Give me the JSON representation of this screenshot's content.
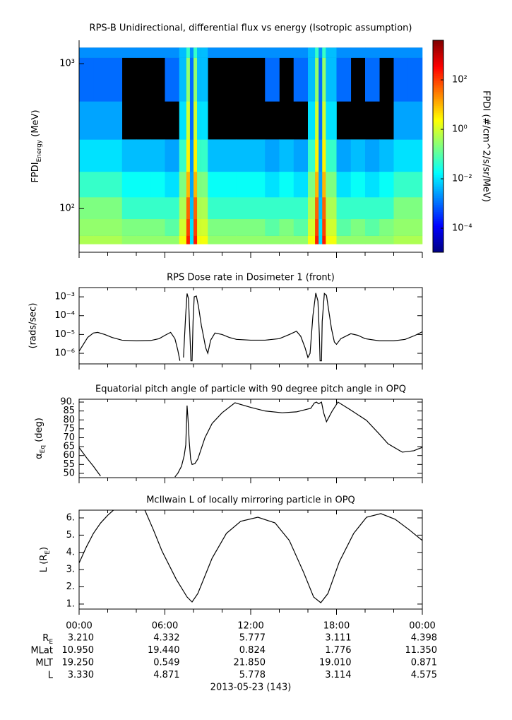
{
  "chart_data": [
    {
      "type": "heatmap",
      "title": "RPS-B  Unidirectional, differential flux vs energy (Isotropic assumption)",
      "ylabel": {
        "main": "FPDI",
        "sub": "Energy",
        "rest": " (MeV)"
      },
      "log": true,
      "ylim": [
        50,
        1450
      ],
      "yticks": [
        {
          "value": 100,
          "label": "10²"
        },
        {
          "value": 1000,
          "label": "10³"
        }
      ],
      "x_bins": [
        0,
        1,
        2,
        3,
        4,
        5,
        6,
        7,
        7.5,
        7.75,
        8,
        8.25,
        8.5,
        9,
        10,
        11,
        12,
        13,
        14,
        15,
        16,
        16.5,
        16.75,
        17,
        17.25,
        17.5,
        18,
        19,
        20,
        21,
        22,
        23,
        24
      ],
      "y_bins": [
        57,
        65,
        85,
        120,
        180,
        300,
        550,
        1100,
        1290
      ],
      "z": [
        [
          0.5,
          0.3,
          0.2,
          0.05,
          0.01,
          0.003,
          0.001,
          0.002
        ],
        [
          0.5,
          0.3,
          0.2,
          0.05,
          0.01,
          0.003,
          0.001,
          0.002
        ],
        [
          0.5,
          0.3,
          0.2,
          0.05,
          0.01,
          0.003,
          0.001,
          0.002
        ],
        [
          0.3,
          0.2,
          0.05,
          0.02,
          0.005,
          null,
          null,
          0.002
        ],
        [
          0.3,
          0.2,
          0.05,
          0.02,
          0.005,
          null,
          null,
          0.002
        ],
        [
          0.3,
          0.2,
          0.05,
          0.02,
          0.005,
          null,
          null,
          0.002
        ],
        [
          0.3,
          0.1,
          0.05,
          0.01,
          0.003,
          null,
          0.001,
          0.002
        ],
        [
          2,
          1,
          0.5,
          0.2,
          0.05,
          0.01,
          0.005,
          0.005
        ],
        [
          200,
          100,
          50,
          10,
          3,
          1,
          0.3,
          0.05
        ],
        [
          0.01,
          0.01,
          0.005,
          0.003,
          0.002,
          0.001,
          0.001,
          0.002
        ],
        [
          200,
          100,
          50,
          10,
          3,
          1,
          0.3,
          0.05
        ],
        [
          2,
          1,
          0.5,
          0.2,
          0.05,
          0.01,
          0.005,
          0.005
        ],
        [
          2,
          1,
          0.5,
          0.2,
          0.05,
          0.01,
          0.005,
          0.005
        ],
        [
          0.3,
          0.2,
          0.05,
          0.02,
          0.005,
          null,
          null,
          0.002
        ],
        [
          0.3,
          0.2,
          0.05,
          0.02,
          0.005,
          null,
          null,
          0.002
        ],
        [
          0.3,
          0.2,
          0.05,
          0.02,
          0.005,
          null,
          null,
          0.002
        ],
        [
          0.3,
          0.2,
          0.05,
          0.02,
          0.005,
          null,
          null,
          0.002
        ],
        [
          0.3,
          0.1,
          0.05,
          0.01,
          0.003,
          null,
          0.001,
          0.002
        ],
        [
          0.3,
          0.2,
          0.05,
          0.02,
          0.005,
          null,
          null,
          0.002
        ],
        [
          0.3,
          0.1,
          0.05,
          0.01,
          0.003,
          null,
          0.001,
          0.002
        ],
        [
          2,
          1,
          0.5,
          0.2,
          0.05,
          0.01,
          0.005,
          0.005
        ],
        [
          200,
          100,
          50,
          10,
          3,
          1,
          0.3,
          0.05
        ],
        [
          0.01,
          0.01,
          0.005,
          0.003,
          0.002,
          0.001,
          0.001,
          0.002
        ],
        [
          200,
          100,
          50,
          10,
          3,
          1,
          0.3,
          0.05
        ],
        [
          2,
          1,
          0.5,
          0.2,
          0.05,
          0.01,
          0.005,
          0.005
        ],
        [
          2,
          1,
          0.5,
          0.2,
          0.05,
          0.01,
          0.005,
          0.005
        ],
        [
          0.3,
          0.1,
          0.05,
          0.01,
          0.003,
          null,
          0.001,
          0.002
        ],
        [
          0.3,
          0.2,
          0.05,
          0.02,
          0.005,
          null,
          null,
          0.002
        ],
        [
          0.3,
          0.1,
          0.05,
          0.01,
          0.003,
          null,
          0.001,
          0.002
        ],
        [
          0.3,
          0.2,
          0.05,
          0.02,
          0.005,
          null,
          null,
          0.002
        ],
        [
          0.5,
          0.3,
          0.2,
          0.05,
          0.01,
          0.003,
          0.001,
          0.002
        ],
        [
          0.5,
          0.3,
          0.2,
          0.05,
          0.01,
          0.003,
          0.001,
          0.002
        ]
      ],
      "colorbar": {
        "label": "FPDI (#/cm^2/s/sr/MeV)",
        "log": true,
        "zlim": [
          1.07e-05,
          4000
        ],
        "ticks": [
          {
            "value": 0.0001,
            "label": "10⁻⁴"
          },
          {
            "value": 0.01,
            "label": "10⁻²"
          },
          {
            "value": 1,
            "label": "10⁰"
          },
          {
            "value": 100,
            "label": "10²"
          }
        ]
      }
    },
    {
      "type": "line",
      "title": "RPS  Dose rate in Dosimeter 1 (front)",
      "ylabel": "(rads/sec)",
      "log": true,
      "ylim": [
        2.75e-07,
        0.0031
      ],
      "color": "#000000",
      "yticks": [
        {
          "value": 1e-06,
          "label": "10⁻⁶"
        },
        {
          "value": 1e-05,
          "label": "10⁻⁵"
        },
        {
          "value": 0.0001,
          "label": "10⁻⁴"
        },
        {
          "value": 0.001,
          "label": "10⁻³"
        }
      ],
      "x": [
        0,
        0.3,
        0.6,
        1,
        1.3,
        1.8,
        2.3,
        3,
        4,
        5,
        5.6,
        6,
        6.4,
        6.7,
        6.9,
        7.05,
        7.2,
        7.3,
        7.45,
        7.55,
        7.65,
        7.75,
        7.82,
        7.9,
        7.97,
        8.05,
        8.2,
        8.35,
        8.55,
        8.7,
        8.85,
        9,
        9.2,
        9.5,
        10,
        10.5,
        11,
        12,
        13,
        14,
        14.7,
        15.2,
        15.5,
        15.8,
        16,
        16.15,
        16.35,
        16.55,
        16.7,
        16.8,
        16.85,
        16.95,
        17,
        17.15,
        17.3,
        17.45,
        17.65,
        17.85,
        18,
        18.3,
        19,
        19.5,
        20,
        21,
        22,
        22.8,
        23.5,
        24
      ],
      "values": [
        1.3e-06,
        3e-06,
        7e-06,
        1.2e-05,
        1.3e-05,
        1e-05,
        7e-06,
        5e-06,
        4.6e-06,
        4.8e-06,
        6e-06,
        9e-06,
        1.3e-05,
        6e-06,
        1.5e-06,
        4e-07,
        null,
        6e-07,
        0.0001,
        0.0015,
        0.0008,
        1e-05,
        4e-07,
        4e-07,
        5e-05,
        0.001,
        0.0011,
        0.0003,
        3e-05,
        8e-06,
        2e-06,
        1e-06,
        5e-06,
        1.2e-05,
        1e-05,
        7e-06,
        5.5e-06,
        5e-06,
        5e-06,
        6e-06,
        1e-05,
        1.5e-05,
        8e-06,
        2e-06,
        6e-07,
        1e-06,
        0.0001,
        0.0016,
        0.0006,
        1e-05,
        4e-07,
        4e-07,
        5e-05,
        0.0015,
        0.0012,
        0.0002,
        2e-05,
        4e-06,
        3e-06,
        6e-06,
        1.1e-05,
        9e-06,
        6e-06,
        4.6e-06,
        4.6e-06,
        5.5e-06,
        9e-06,
        1.4e-05
      ]
    },
    {
      "type": "line",
      "title": "Equatorial pitch angle of particle with 90 degree pitch angle in OPQ",
      "ylabel": {
        "main": "α",
        "sub": "Eq",
        "rest": " (deg)"
      },
      "ylim": [
        47.6,
        91.6
      ],
      "color": "#000000",
      "yticks": [
        50,
        55,
        60,
        65,
        70,
        75,
        80,
        85,
        {
          "value": 90,
          "label": "90."
        }
      ],
      "x": [
        0,
        0.5,
        1,
        1.5,
        4,
        6.7,
        6.9,
        7.16,
        7.35,
        7.46,
        7.55,
        7.62,
        7.7,
        7.8,
        7.9,
        8.1,
        8.3,
        8.8,
        9.3,
        10,
        10.9,
        12,
        13,
        14.2,
        15.2,
        16.2,
        16.45,
        16.6,
        16.75,
        16.85,
        16.95,
        17.1,
        17.3,
        17.5,
        17.7,
        18.1,
        19,
        20.1,
        21,
        21.6,
        22.6,
        23.4,
        24
      ],
      "values": [
        64.5,
        59,
        54,
        48.5,
        null,
        48,
        50,
        54,
        60,
        66,
        88,
        80,
        68,
        58,
        55,
        55.5,
        58,
        70,
        78,
        84,
        89.6,
        87,
        85,
        84,
        84.5,
        86.5,
        89.5,
        90,
        89,
        89.5,
        90,
        84,
        79,
        82,
        85,
        90,
        85.5,
        79.7,
        72,
        66.6,
        61.9,
        62.7,
        64.6
      ]
    },
    {
      "type": "line",
      "title": "McIlwain L of locally mirroring particle in OPQ",
      "ylabel": {
        "main": "L (R",
        "sub": "E",
        "rest": ")"
      },
      "ylim": [
        0.71,
        6.45
      ],
      "color": "#000000",
      "yticks": [
        {
          "value": 1,
          "label": "1."
        },
        {
          "value": 2,
          "label": "2."
        },
        {
          "value": 3,
          "label": "3."
        },
        {
          "value": 4,
          "label": "4."
        },
        {
          "value": 5,
          "label": "5."
        },
        {
          "value": 6,
          "label": "6."
        }
      ],
      "x": [
        0,
        0.5,
        1,
        1.5,
        2,
        2.4,
        3.5,
        4.6,
        5.2,
        5.8,
        6.8,
        7.55,
        7.9,
        8.3,
        9.3,
        10.3,
        11.3,
        12.5,
        13.7,
        14.7,
        15.7,
        16.4,
        16.9,
        17.4,
        18.2,
        19.2,
        20.1,
        21.1,
        22.1,
        23.1,
        24
      ],
      "values": [
        3.38,
        4.3,
        5.1,
        5.7,
        6.15,
        6.45,
        null,
        6.45,
        5.3,
        4.07,
        2.43,
        1.41,
        1.12,
        1.61,
        3.66,
        5.1,
        5.8,
        6.04,
        5.71,
        4.69,
        2.84,
        1.41,
        1.08,
        1.61,
        3.46,
        5.1,
        6.04,
        6.25,
        5.92,
        5.3,
        4.69
      ]
    }
  ],
  "time_axis": {
    "xlim": [
      0,
      24
    ],
    "xticks": [
      {
        "value": 0,
        "label": "00:00"
      },
      {
        "value": 6,
        "label": "06:00"
      },
      {
        "value": 12,
        "label": "12:00"
      },
      {
        "value": 18,
        "label": "18:00"
      },
      {
        "value": 24,
        "label": "00:00"
      }
    ],
    "xminor": [
      2,
      4,
      8,
      10,
      14,
      16,
      20,
      22
    ]
  },
  "ephemeris": {
    "rows": [
      {
        "label": "R",
        "sub": "E",
        "values": [
          "3.210",
          "4.332",
          "5.777",
          "3.111",
          "4.398"
        ]
      },
      {
        "label": "MLat",
        "values": [
          "10.950",
          "19.440",
          "0.824",
          "1.776",
          "11.350"
        ]
      },
      {
        "label": "MLT",
        "values": [
          "19.250",
          "0.549",
          "21.850",
          "19.010",
          "0.871"
        ]
      },
      {
        "label": "L",
        "values": [
          "3.330",
          "4.871",
          "5.778",
          "3.114",
          "4.575"
        ]
      }
    ],
    "date": "2013-05-23 (143)"
  }
}
